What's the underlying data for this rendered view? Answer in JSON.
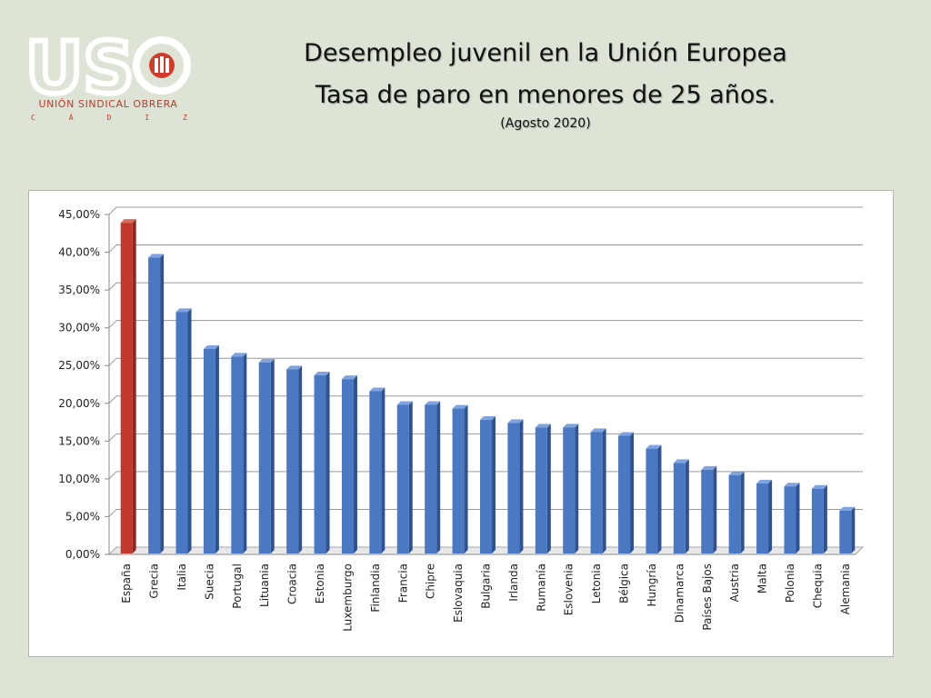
{
  "logo": {
    "letters": "USO",
    "name": "UNIÓN SINDICAL OBRERA",
    "region_letters": [
      "C",
      "Á",
      "D",
      "I",
      "Z"
    ],
    "brand_color": "#c0392b"
  },
  "header": {
    "title_line1": "Desempleo juvenil en la Unión Europea",
    "title_line2": "Tasa de paro en menores de 25 años.",
    "subtitle": "(Agosto 2020)"
  },
  "chart_data": {
    "type": "bar",
    "title": "Desempleo juvenil en la Unión Europea",
    "xlabel": "",
    "ylabel": "",
    "ylim": [
      0,
      45
    ],
    "yticks": [
      "0,00%",
      "5,00%",
      "10,00%",
      "15,00%",
      "20,00%",
      "25,00%",
      "30,00%",
      "35,00%",
      "40,00%",
      "45,00%"
    ],
    "grid": true,
    "highlight_color": "#c0392b",
    "bar_color": "#4a78c2",
    "categories": [
      "España",
      "Grecia",
      "Italia",
      "Suecia",
      "Portugal",
      "Lituania",
      "Croacia",
      "Estonia",
      "Luxemburgo",
      "Finlandia",
      "Francia",
      "Chipre",
      "Eslovaquia",
      "Bulgaria",
      "Irlanda",
      "Rumanía",
      "Eslovenia",
      "Letonia",
      "Bélgica",
      "Hungría",
      "Dinamarca",
      "Países Bajos",
      "Austria",
      "Malta",
      "Polonia",
      "Chequia",
      "Alemania"
    ],
    "values": [
      43.9,
      39.3,
      32.1,
      27.2,
      26.2,
      25.4,
      24.5,
      23.7,
      23.2,
      21.6,
      19.8,
      19.8,
      19.3,
      17.8,
      17.4,
      16.8,
      16.8,
      16.2,
      15.7,
      14.0,
      12.1,
      11.2,
      10.5,
      9.4,
      9.0,
      8.7,
      5.8
    ],
    "highlight": "España"
  }
}
